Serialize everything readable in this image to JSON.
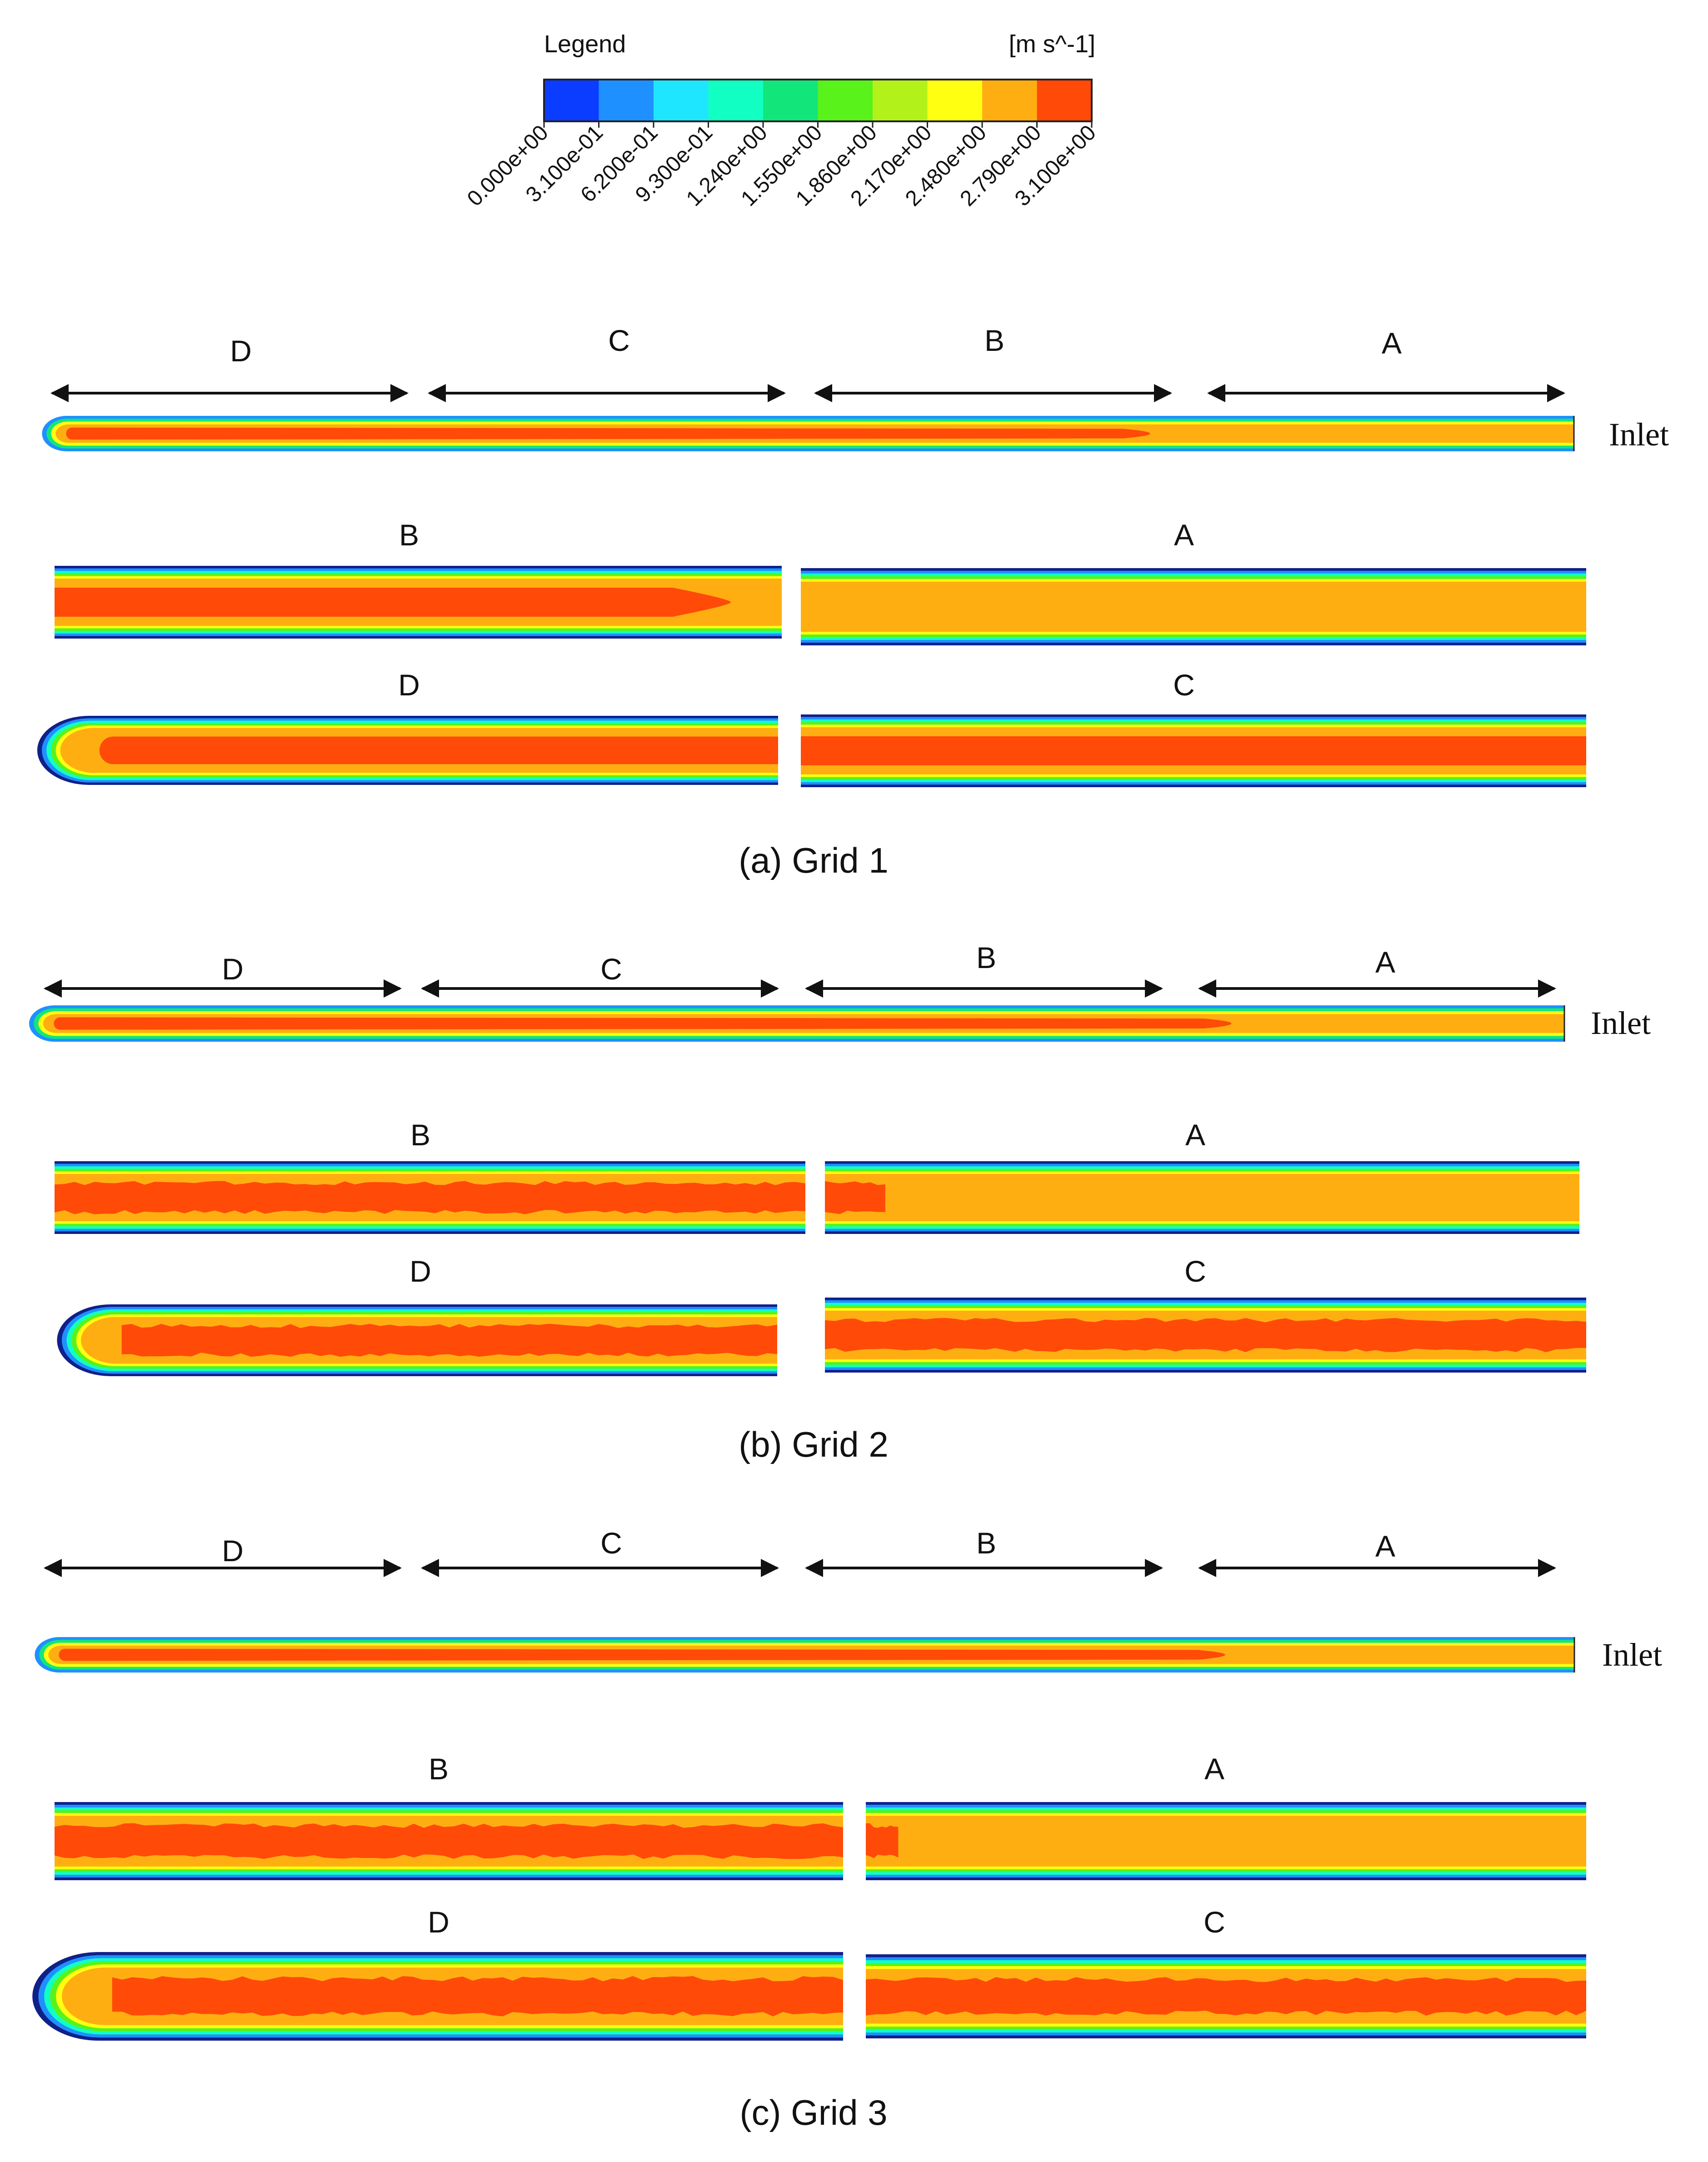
{
  "legend": {
    "title": "Legend",
    "unit": "[m s^-1]",
    "colors": [
      "#0a3dff",
      "#1f90ff",
      "#1fe6ff",
      "#12ffc4",
      "#12e67a",
      "#59f21a",
      "#b2f21a",
      "#ffff12",
      "#ffae12",
      "#ff4a08"
    ],
    "ticks": [
      "0.000e+00",
      "3.100e-01",
      "6.200e-01",
      "9.300e-01",
      "1.240e+00",
      "1.550e+00",
      "1.860e+00",
      "2.170e+00",
      "2.480e+00",
      "2.790e+00",
      "3.100e+00"
    ]
  },
  "inlet_label": "Inlet",
  "panels": [
    {
      "caption": "(a)  Grid 1",
      "section_labels": [
        "D",
        "C",
        "B",
        "A"
      ],
      "core_extent": 0.74,
      "zoom_top_labels": [
        "B",
        "A"
      ],
      "zoom_bottom_labels": [
        "D",
        "C"
      ]
    },
    {
      "caption": "(b)  Grid 2",
      "section_labels": [
        "D",
        "C",
        "B",
        "A"
      ],
      "core_extent": 0.8,
      "zoom_top_labels": [
        "B",
        "A"
      ],
      "zoom_bottom_labels": [
        "D",
        "C"
      ]
    },
    {
      "caption": "(c)  Grid 3",
      "section_labels": [
        "D",
        "C",
        "B",
        "A"
      ],
      "core_extent": 0.79,
      "zoom_top_labels": [
        "B",
        "A"
      ],
      "zoom_bottom_labels": [
        "D",
        "C"
      ]
    }
  ]
}
